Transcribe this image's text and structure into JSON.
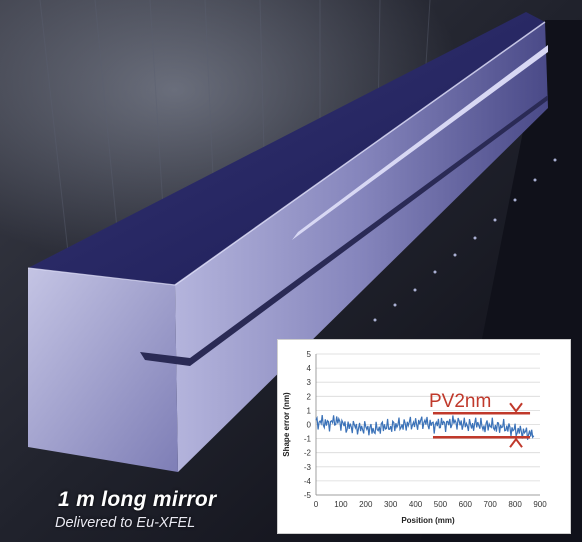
{
  "caption": {
    "title": "1 m long mirror",
    "subtitle": "Delivered to Eu-XFEL"
  },
  "colors": {
    "background": "#000000",
    "mirror_top": "#2c2c6e",
    "mirror_side": "#8f8fc0",
    "annotation_red": "#c0392b",
    "trace_blue": "#3b72b8"
  },
  "chart_data": {
    "type": "line",
    "title": "",
    "xlabel": "Position (mm)",
    "ylabel": "Shape error (nm)",
    "xlim": [
      0,
      900
    ],
    "ylim": [
      -5,
      5
    ],
    "xticks": [
      0,
      100,
      200,
      300,
      400,
      500,
      600,
      700,
      800,
      900
    ],
    "yticks": [
      5,
      4,
      3,
      2,
      1,
      0,
      -1,
      -2,
      -3,
      -4,
      -5
    ],
    "grid": true,
    "series": [
      {
        "color": "#3b72b8",
        "x": [
          0,
          25,
          50,
          75,
          100,
          125,
          150,
          175,
          200,
          225,
          250,
          275,
          300,
          325,
          350,
          375,
          400,
          425,
          450,
          475,
          500,
          525,
          550,
          575,
          600,
          625,
          650,
          675,
          700,
          725,
          750,
          775,
          800,
          825,
          850,
          875
        ],
        "y": [
          0.1,
          0.2,
          0.0,
          0.3,
          0.1,
          -0.2,
          -0.1,
          -0.3,
          -0.2,
          -0.4,
          -0.3,
          -0.1,
          -0.2,
          0.0,
          -0.1,
          0.1,
          0.0,
          0.2,
          0.1,
          -0.1,
          0.1,
          0.0,
          0.2,
          0.1,
          0.0,
          -0.1,
          0.1,
          -0.2,
          0.0,
          -0.2,
          -0.1,
          -0.3,
          -0.4,
          -0.5,
          -0.6,
          -0.8
        ]
      }
    ],
    "annotations": [
      {
        "text": "PV2nm",
        "upper_line_y": 0.8,
        "lower_line_y": -0.9,
        "x_start": 470,
        "x_end": 860
      }
    ]
  }
}
